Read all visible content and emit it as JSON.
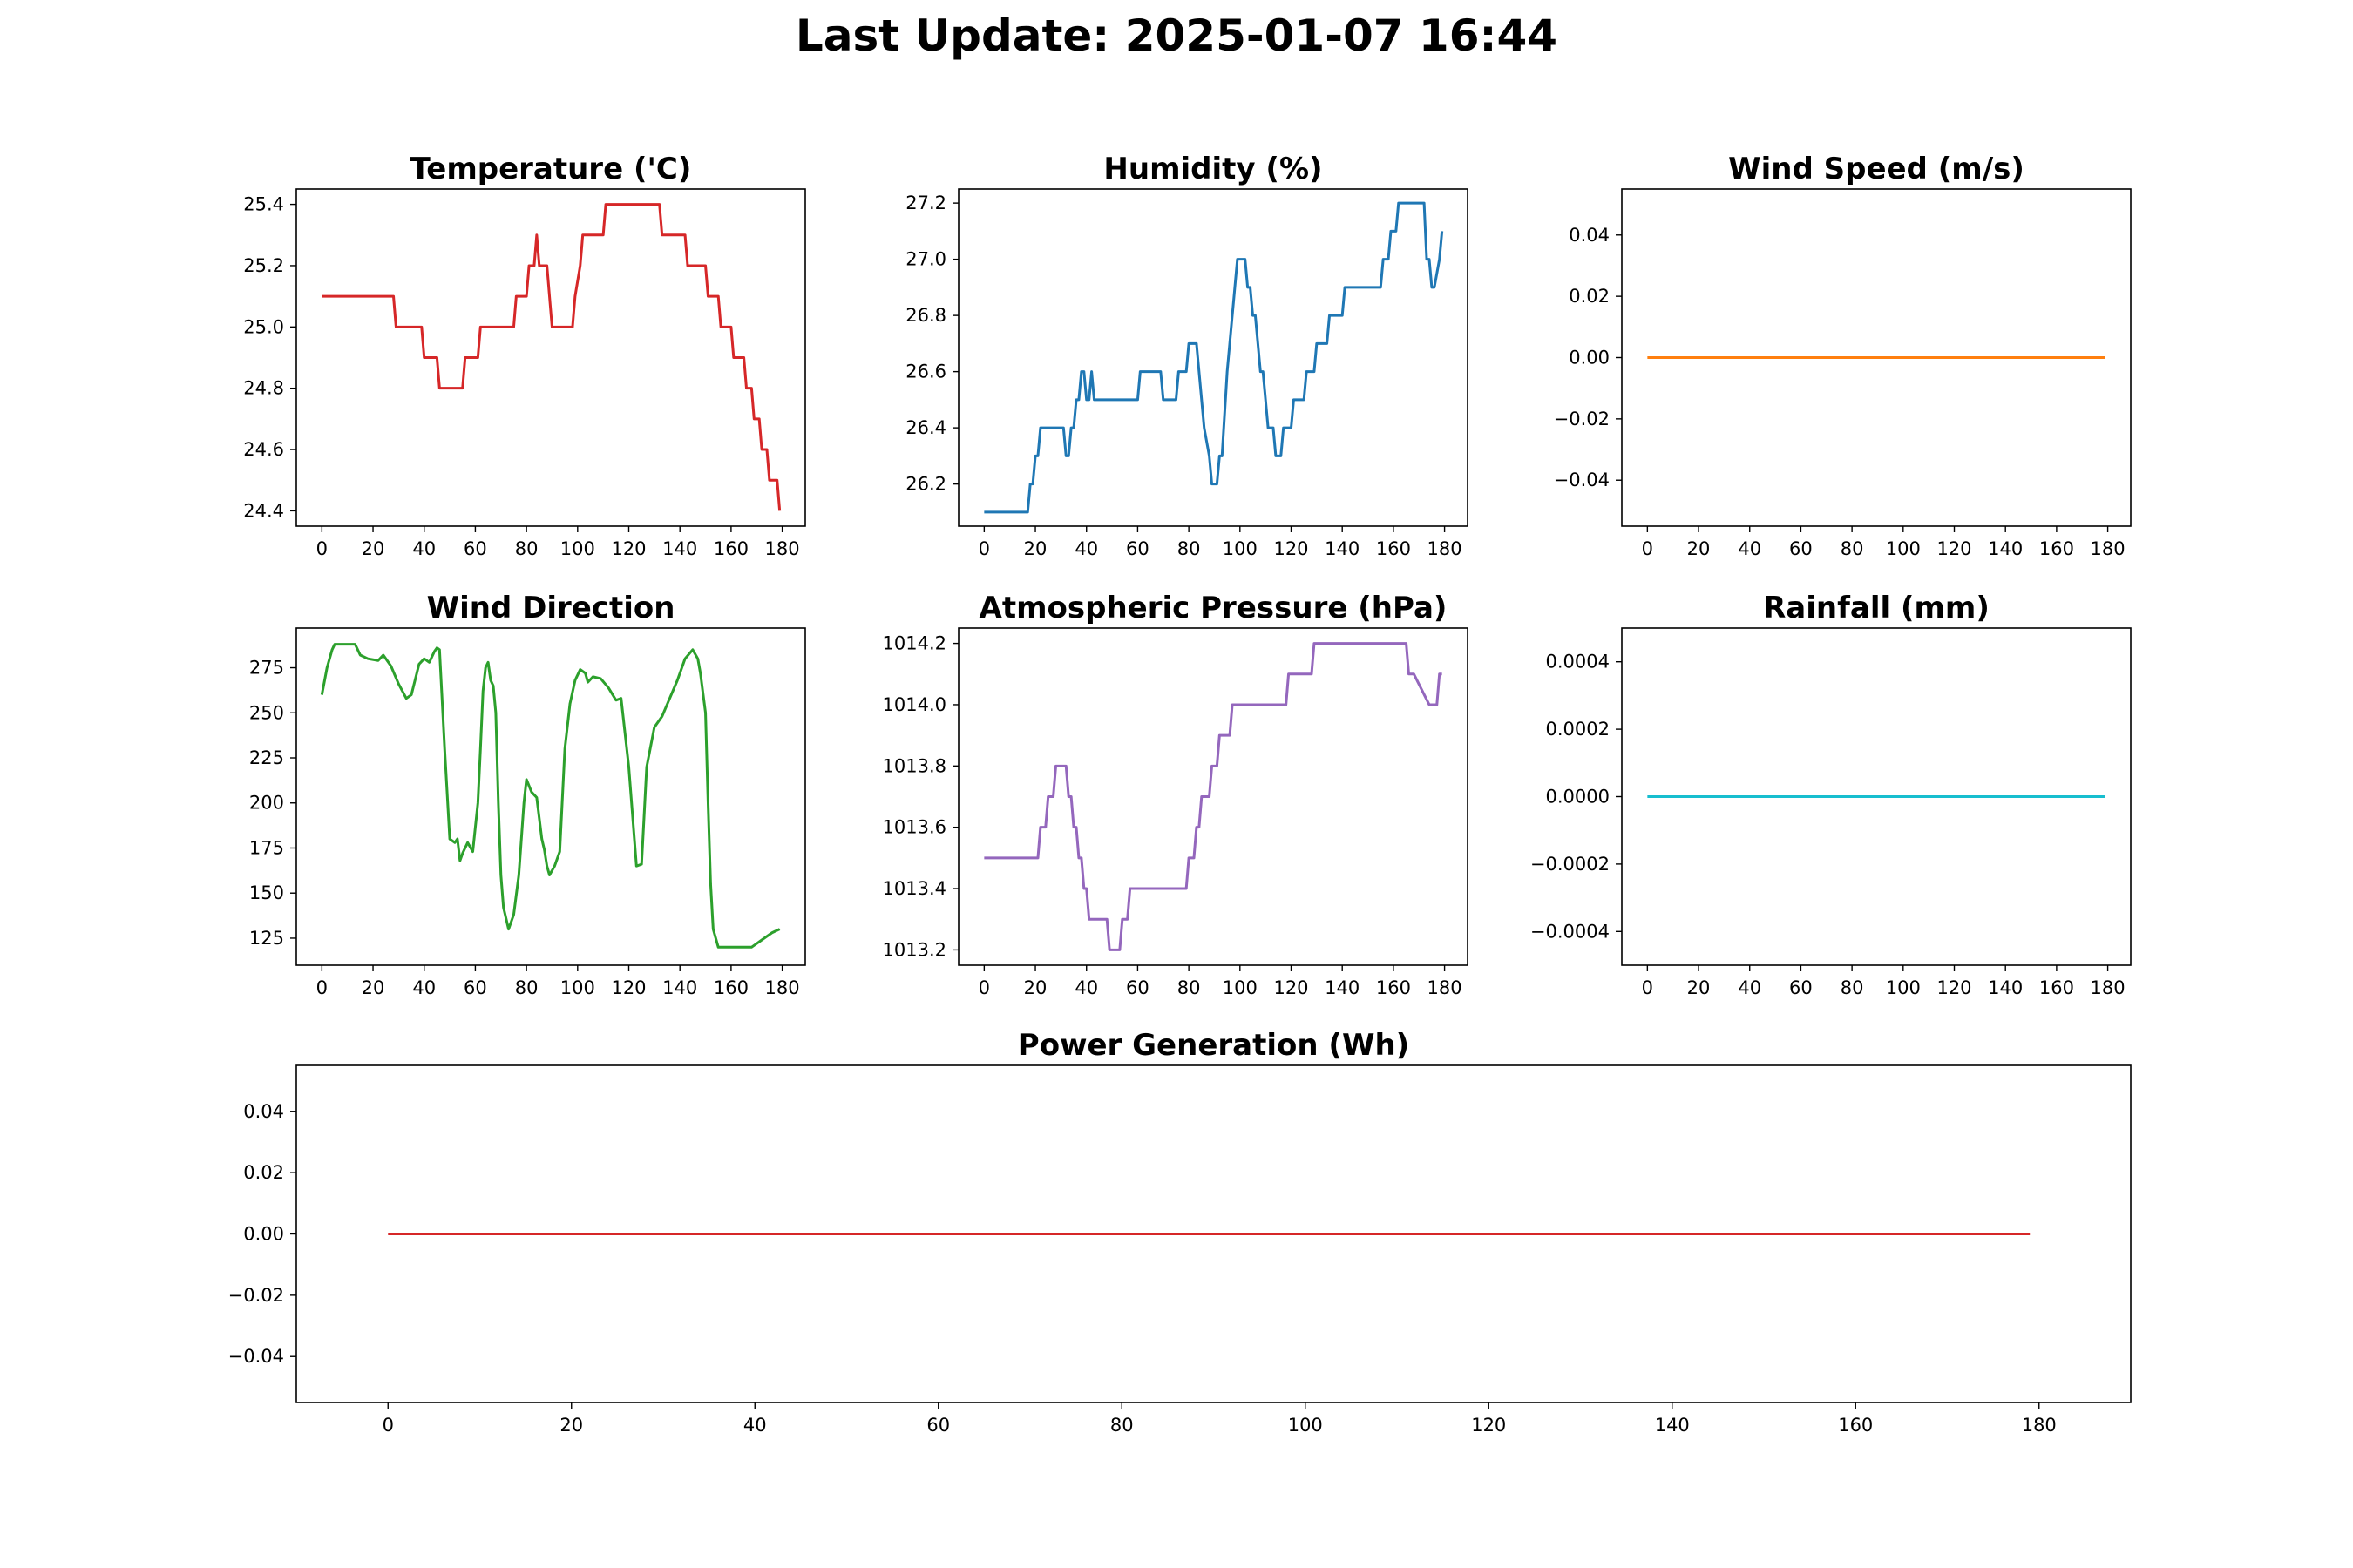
{
  "page_title": "Last Update: 2025-01-07 16:44",
  "chart_data": [
    {
      "id": "temperature",
      "type": "line",
      "title": "Temperature ('C)",
      "color": "#d62728",
      "xlim": [
        -10,
        189
      ],
      "ylim": [
        24.35,
        25.45
      ],
      "xticks": [
        0,
        20,
        40,
        60,
        80,
        100,
        120,
        140,
        160,
        180
      ],
      "yticks": [
        24.4,
        24.6,
        24.8,
        25.0,
        25.2,
        25.4
      ],
      "ytick_labels": [
        "24.4",
        "24.6",
        "24.8",
        "25.0",
        "25.2",
        "25.4"
      ],
      "series": [
        {
          "x": [
            0,
            28,
            29,
            39,
            40,
            45,
            46,
            55,
            56,
            61,
            62,
            75,
            76,
            80,
            81,
            83,
            84,
            85,
            86,
            88,
            89,
            90,
            92,
            98,
            99,
            101,
            102,
            104,
            110,
            111,
            132,
            133,
            142,
            143,
            150,
            151,
            155,
            156,
            160,
            161,
            165,
            166,
            168,
            169,
            171,
            172,
            174,
            175,
            178,
            179
          ],
          "values": [
            25.1,
            25.1,
            25.0,
            25.0,
            24.9,
            24.9,
            24.8,
            24.8,
            24.9,
            24.9,
            25.0,
            25.0,
            25.1,
            25.1,
            25.2,
            25.2,
            25.3,
            25.2,
            25.2,
            25.2,
            25.1,
            25.0,
            25.0,
            25.0,
            25.1,
            25.2,
            25.3,
            25.3,
            25.3,
            25.4,
            25.4,
            25.3,
            25.3,
            25.2,
            25.2,
            25.1,
            25.1,
            25.0,
            25.0,
            24.9,
            24.9,
            24.8,
            24.8,
            24.7,
            24.7,
            24.6,
            24.6,
            24.5,
            24.5,
            24.4
          ]
        }
      ]
    },
    {
      "id": "humidity",
      "type": "line",
      "title": "Humidity (%)",
      "color": "#1f77b4",
      "xlim": [
        -10,
        189
      ],
      "ylim": [
        26.05,
        27.25
      ],
      "xticks": [
        0,
        20,
        40,
        60,
        80,
        100,
        120,
        140,
        160,
        180
      ],
      "yticks": [
        26.2,
        26.4,
        26.6,
        26.8,
        27.0,
        27.2
      ],
      "ytick_labels": [
        "26.2",
        "26.4",
        "26.6",
        "26.8",
        "27.0",
        "27.2"
      ],
      "series": [
        {
          "x": [
            0,
            17,
            18,
            19,
            20,
            21,
            22,
            31,
            32,
            33,
            34,
            35,
            36,
            37,
            38,
            39,
            40,
            41,
            42,
            43,
            60,
            61,
            69,
            70,
            75,
            76,
            79,
            80,
            83,
            84,
            86,
            88,
            89,
            90,
            91,
            92,
            93,
            95,
            98,
            99,
            102,
            103,
            104,
            105,
            106,
            107,
            108,
            109,
            111,
            113,
            114,
            116,
            117,
            120,
            121,
            125,
            126,
            129,
            130,
            134,
            135,
            140,
            141,
            155,
            156,
            158,
            159,
            161,
            162,
            172,
            173,
            174,
            175,
            176,
            178,
            179
          ],
          "values": [
            26.1,
            26.1,
            26.2,
            26.2,
            26.3,
            26.3,
            26.4,
            26.4,
            26.3,
            26.3,
            26.4,
            26.4,
            26.5,
            26.5,
            26.6,
            26.6,
            26.5,
            26.5,
            26.6,
            26.5,
            26.5,
            26.6,
            26.6,
            26.5,
            26.5,
            26.6,
            26.6,
            26.7,
            26.7,
            26.6,
            26.4,
            26.3,
            26.2,
            26.2,
            26.2,
            26.3,
            26.3,
            26.6,
            26.9,
            27.0,
            27.0,
            26.9,
            26.9,
            26.8,
            26.8,
            26.7,
            26.6,
            26.6,
            26.4,
            26.4,
            26.3,
            26.3,
            26.4,
            26.4,
            26.5,
            26.5,
            26.6,
            26.6,
            26.7,
            26.7,
            26.8,
            26.8,
            26.9,
            26.9,
            27.0,
            27.0,
            27.1,
            27.1,
            27.2,
            27.2,
            27.0,
            27.0,
            26.9,
            26.9,
            27.0,
            27.1
          ]
        }
      ]
    },
    {
      "id": "wind-speed",
      "type": "line",
      "title": "Wind Speed (m/s)",
      "color": "#ff7f0e",
      "xlim": [
        -10,
        189
      ],
      "ylim": [
        -0.055,
        0.055
      ],
      "xticks": [
        0,
        20,
        40,
        60,
        80,
        100,
        120,
        140,
        160,
        180
      ],
      "yticks": [
        -0.04,
        -0.02,
        0.0,
        0.02,
        0.04
      ],
      "ytick_labels": [
        "−0.04",
        "−0.02",
        "0.00",
        "0.02",
        "0.04"
      ],
      "series": [
        {
          "x": [
            0,
            179
          ],
          "values": [
            0,
            0
          ]
        }
      ]
    },
    {
      "id": "wind-direction",
      "type": "line",
      "title": "Wind Direction",
      "color": "#2ca02c",
      "xlim": [
        -10,
        189
      ],
      "ylim": [
        110,
        297
      ],
      "xticks": [
        0,
        20,
        40,
        60,
        80,
        100,
        120,
        140,
        160,
        180
      ],
      "yticks": [
        125,
        150,
        175,
        200,
        225,
        250,
        275
      ],
      "ytick_labels": [
        "125",
        "150",
        "175",
        "200",
        "225",
        "250",
        "275"
      ],
      "series": [
        {
          "x": [
            0,
            2,
            4,
            5,
            13,
            15,
            18,
            22,
            24,
            27,
            30,
            33,
            35,
            38,
            40,
            42,
            44,
            45,
            46,
            48,
            50,
            52,
            53,
            54,
            55,
            57,
            59,
            61,
            62,
            63,
            64,
            65,
            66,
            67,
            68,
            69,
            70,
            71,
            73,
            75,
            77,
            79,
            80,
            82,
            84,
            86,
            87,
            88,
            89,
            91,
            93,
            95,
            97,
            99,
            101,
            103,
            104,
            106,
            109,
            112,
            115,
            117,
            120,
            123,
            125,
            127,
            130,
            133,
            136,
            139,
            142,
            145,
            147,
            148,
            150,
            151,
            152,
            153,
            155,
            157,
            159,
            162,
            168,
            170,
            172,
            176,
            179
          ],
          "values": [
            260,
            275,
            285,
            288,
            288,
            282,
            280,
            279,
            282,
            276,
            266,
            258,
            260,
            277,
            280,
            278,
            284,
            286,
            285,
            230,
            180,
            178,
            180,
            168,
            172,
            178,
            173,
            200,
            230,
            262,
            275,
            278,
            268,
            265,
            250,
            200,
            160,
            142,
            130,
            138,
            160,
            200,
            213,
            206,
            203,
            180,
            174,
            165,
            160,
            165,
            173,
            230,
            255,
            268,
            274,
            272,
            267,
            270,
            269,
            264,
            257,
            258,
            220,
            165,
            166,
            220,
            242,
            248,
            258,
            268,
            280,
            285,
            280,
            272,
            250,
            200,
            155,
            130,
            120,
            120,
            120,
            120,
            120,
            122,
            124,
            128,
            130
          ]
        }
      ]
    },
    {
      "id": "atmospheric-pressure",
      "type": "line",
      "title": "Atmospheric Pressure (hPa)",
      "color": "#9467bd",
      "xlim": [
        -10,
        189
      ],
      "ylim": [
        1013.15,
        1014.25
      ],
      "xticks": [
        0,
        20,
        40,
        60,
        80,
        100,
        120,
        140,
        160,
        180
      ],
      "yticks": [
        1013.2,
        1013.4,
        1013.6,
        1013.8,
        1014.0,
        1014.2
      ],
      "ytick_labels": [
        "1013.2",
        "1013.4",
        "1013.6",
        "1013.8",
        "1014.0",
        "1014.2"
      ],
      "series": [
        {
          "x": [
            0,
            21,
            22,
            24,
            25,
            27,
            28,
            32,
            33,
            34,
            35,
            36,
            37,
            38,
            39,
            40,
            41,
            42,
            43,
            48,
            49,
            53,
            54,
            56,
            57,
            79,
            80,
            82,
            83,
            84,
            85,
            88,
            89,
            91,
            92,
            96,
            97,
            102,
            103,
            115,
            116,
            118,
            119,
            128,
            129,
            133,
            134,
            139,
            140,
            148,
            149,
            153,
            154,
            157,
            158,
            161,
            162,
            163,
            164,
            165,
            166,
            167,
            168,
            174,
            175,
            177,
            178,
            179
          ],
          "values": [
            1013.5,
            1013.5,
            1013.6,
            1013.6,
            1013.7,
            1013.7,
            1013.8,
            1013.8,
            1013.7,
            1013.7,
            1013.6,
            1013.6,
            1013.5,
            1013.5,
            1013.4,
            1013.4,
            1013.3,
            1013.3,
            1013.3,
            1013.3,
            1013.2,
            1013.2,
            1013.3,
            1013.3,
            1013.4,
            1013.4,
            1013.5,
            1013.5,
            1013.6,
            1013.6,
            1013.7,
            1013.7,
            1013.8,
            1013.8,
            1013.9,
            1013.9,
            1014.0,
            1014.0,
            1014.0,
            1014.0,
            1014.0,
            1014.0,
            1014.1,
            1014.1,
            1014.2,
            1014.2,
            1014.2,
            1014.2,
            1014.2,
            1014.2,
            1014.2,
            1014.2,
            1014.2,
            1014.2,
            1014.2,
            1014.2,
            1014.2,
            1014.2,
            1014.2,
            1014.2,
            1014.1,
            1014.1,
            1014.1,
            1014.0,
            1014.0,
            1014.0,
            1014.1,
            1014.1
          ]
        }
      ]
    },
    {
      "id": "rainfall",
      "type": "line",
      "title": "Rainfall (mm)",
      "color": "#17becf",
      "xlim": [
        -10,
        189
      ],
      "ylim": [
        -0.0005,
        0.0005
      ],
      "xticks": [
        0,
        20,
        40,
        60,
        80,
        100,
        120,
        140,
        160,
        180
      ],
      "yticks": [
        -0.0004,
        -0.0002,
        0.0,
        0.0002,
        0.0004
      ],
      "ytick_labels": [
        "−0.0004",
        "−0.0002",
        "0.0000",
        "0.0002",
        "0.0004"
      ],
      "series": [
        {
          "x": [
            0,
            179
          ],
          "values": [
            0,
            0
          ]
        }
      ]
    },
    {
      "id": "power-generation",
      "type": "line",
      "title": "Power Generation (Wh)",
      "color": "#d62728",
      "xlim": [
        -10,
        190
      ],
      "ylim": [
        -0.055,
        0.055
      ],
      "xticks": [
        0,
        20,
        40,
        60,
        80,
        100,
        120,
        140,
        160,
        180
      ],
      "yticks": [
        -0.04,
        -0.02,
        0.0,
        0.02,
        0.04
      ],
      "ytick_labels": [
        "−0.04",
        "−0.02",
        "0.00",
        "0.02",
        "0.04"
      ],
      "series": [
        {
          "x": [
            0,
            179
          ],
          "values": [
            0,
            0
          ]
        }
      ]
    }
  ]
}
